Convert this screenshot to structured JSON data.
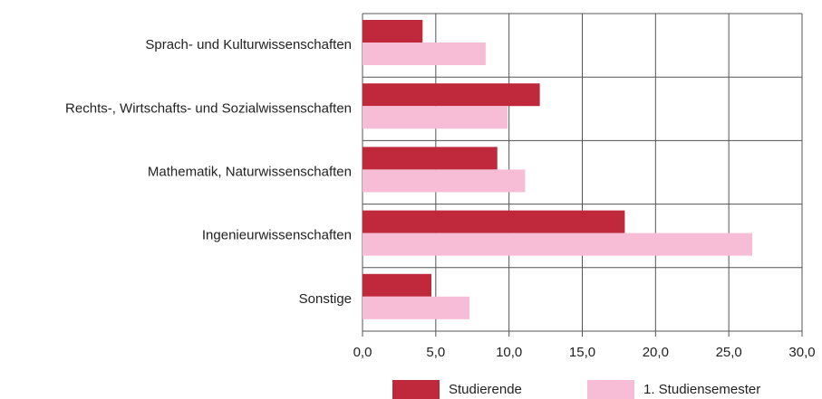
{
  "chart_data": {
    "type": "bar",
    "orientation": "horizontal",
    "categories": [
      "Sprach- und Kulturwissenschaften",
      "Rechts-, Wirtschafts- und Sozialwissenschaften",
      "Mathematik, Naturwissenschaften",
      "Ingenieurwissenschaften",
      "Sonstige"
    ],
    "series": [
      {
        "name": "Studierende",
        "color": "#c0283b",
        "values": [
          4.1,
          12.1,
          9.2,
          17.9,
          4.7
        ]
      },
      {
        "name": "1. Studiensemester",
        "color": "#f7bcd6",
        "values": [
          8.4,
          9.9,
          11.1,
          26.6,
          7.3
        ]
      }
    ],
    "xlim": [
      0,
      30
    ],
    "xticks": [
      {
        "value": 0,
        "label": "0,0"
      },
      {
        "value": 5,
        "label": "5,0"
      },
      {
        "value": 10,
        "label": "10,0"
      },
      {
        "value": 15,
        "label": "15,0"
      },
      {
        "value": 20,
        "label": "20,0"
      },
      {
        "value": 25,
        "label": "25,0"
      },
      {
        "value": 30,
        "label": "30,0"
      }
    ],
    "grid": true,
    "legend": "bottom"
  }
}
